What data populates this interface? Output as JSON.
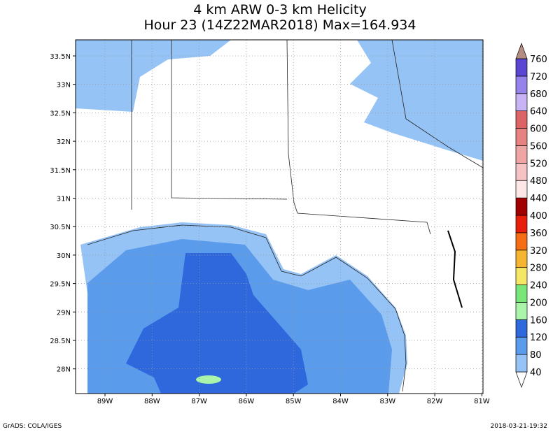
{
  "title": "4 km ARW 0-3 km Helicity",
  "subtitle": "Hour 23 (14Z22MAR2018) Max=164.934",
  "lat_labels": [
    "33.5N",
    "33N",
    "32.5N",
    "32N",
    "31.5N",
    "31N",
    "30.5N",
    "30N",
    "29.5N",
    "29N",
    "28.5N",
    "28N"
  ],
  "lon_labels": [
    "89W",
    "88W",
    "87W",
    "86W",
    "85W",
    "84W",
    "83W",
    "82W",
    "81W"
  ],
  "colorbar": {
    "levels": [
      40,
      80,
      120,
      160,
      200,
      240,
      280,
      320,
      360,
      400,
      440,
      480,
      520,
      560,
      600,
      640,
      680,
      720,
      760
    ],
    "colors": [
      "#ffffff",
      "#96c3f5",
      "#5a9bec",
      "#2e68dc",
      "#aaf5aa",
      "#78e678",
      "#f5e664",
      "#f5b432",
      "#f56e14",
      "#e61e0a",
      "#a00000",
      "#fce6e6",
      "#f5c3c3",
      "#f0a5a5",
      "#e68282",
      "#dc6464",
      "#c8b4f5",
      "#9682eb",
      "#5a46d2",
      "#b48c82"
    ]
  },
  "footer": {
    "left": "GrADS: COLA/IGES",
    "right": "2018-03-21-19:32"
  }
}
